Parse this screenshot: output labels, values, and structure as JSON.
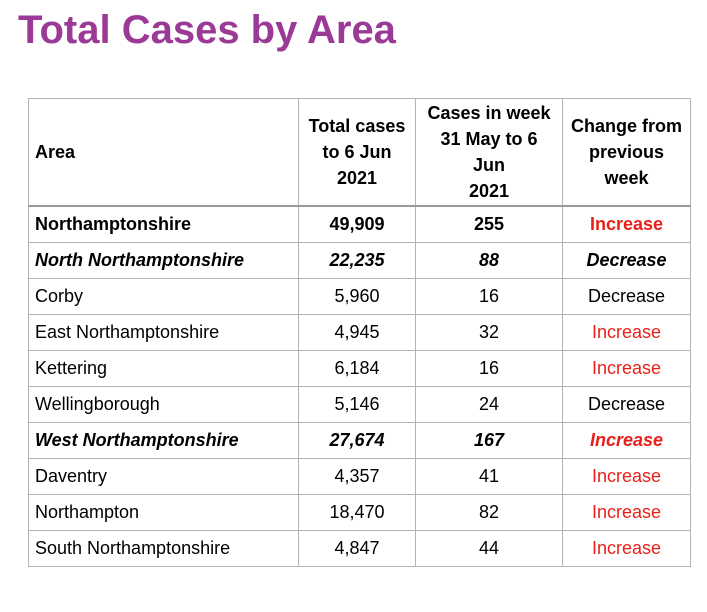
{
  "title": "Total Cases by Area",
  "colors": {
    "title": "#9b3a96",
    "increase": "#e8201a",
    "decrease": "#000000",
    "border": "#b3b3b3"
  },
  "table": {
    "headers": {
      "area": "Area",
      "total_line1": "Total cases",
      "total_line2": "to 6 Jun",
      "total_line3": "2021",
      "week_line1": "Cases in week",
      "week_line2": "31 May to 6 Jun",
      "week_line3": "2021",
      "change_line1": "Change from",
      "change_line2": "previous",
      "change_line3": "week"
    },
    "rows": [
      {
        "area": "Northamptonshire",
        "total": "49,909",
        "week": "255",
        "change": "Increase",
        "style": "bold"
      },
      {
        "area": "North Northamptonshire",
        "total": "22,235",
        "week": "88",
        "change": "Decrease",
        "style": "bold-italic"
      },
      {
        "area": "Corby",
        "total": "5,960",
        "week": "16",
        "change": "Decrease",
        "style": "normal"
      },
      {
        "area": "East Northamptonshire",
        "total": "4,945",
        "week": "32",
        "change": "Increase",
        "style": "normal"
      },
      {
        "area": "Kettering",
        "total": "6,184",
        "week": "16",
        "change": "Increase",
        "style": "normal"
      },
      {
        "area": "Wellingborough",
        "total": "5,146",
        "week": "24",
        "change": "Decrease",
        "style": "normal"
      },
      {
        "area": "West Northamptonshire",
        "total": "27,674",
        "week": "167",
        "change": "Increase",
        "style": "bold-italic"
      },
      {
        "area": "Daventry",
        "total": "4,357",
        "week": "41",
        "change": "Increase",
        "style": "normal"
      },
      {
        "area": "Northampton",
        "total": "18,470",
        "week": "82",
        "change": "Increase",
        "style": "normal"
      },
      {
        "area": "South Northamptonshire",
        "total": "4,847",
        "week": "44",
        "change": "Increase",
        "style": "normal"
      }
    ]
  }
}
